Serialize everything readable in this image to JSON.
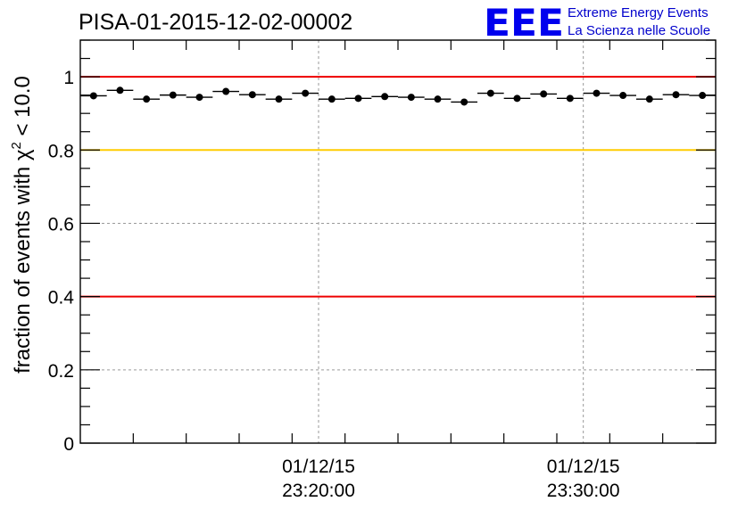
{
  "header": {
    "title": "PISA-01-2015-12-02-00002",
    "logo": {
      "letters": "EEE",
      "line1": "Extreme Energy Events",
      "line2": "La Scienza nelle Scuole",
      "color": "#0000ee"
    }
  },
  "chart_data": {
    "type": "scatter",
    "title": "PISA-01-2015-12-02-00002",
    "xlabel": "",
    "ylabel": "fraction of events with χ² < 10.0",
    "ylabel_parts": {
      "before": "fraction of events with ",
      "symbol": "χ",
      "sup": "2",
      "after": " < 10.0"
    },
    "ylim": [
      0,
      1.1
    ],
    "xlim": [
      "01/12/15 23:11:00",
      "01/12/15 23:35:00"
    ],
    "y_ticks": [
      {
        "value": 0,
        "label": "0"
      },
      {
        "value": 0.2,
        "label": "0.2"
      },
      {
        "value": 0.4,
        "label": "0.4"
      },
      {
        "value": 0.6,
        "label": "0.6"
      },
      {
        "value": 0.8,
        "label": "0.8"
      },
      {
        "value": 1,
        "label": "1"
      }
    ],
    "x_ticks": [
      {
        "value": "01/12/15 23:20:00",
        "date": "01/12/15",
        "time": "23:20:00"
      },
      {
        "value": "01/12/15 23:30:00",
        "date": "01/12/15",
        "time": "23:30:00"
      }
    ],
    "grid": true,
    "reference_lines": [
      {
        "y": 1.0,
        "color": "#ee0000"
      },
      {
        "y": 0.8,
        "color": "#ffcc00"
      },
      {
        "y": 0.4,
        "color": "#ee0000"
      }
    ],
    "series": [
      {
        "marker_color": "#000000",
        "bin_width_minutes": 1,
        "x": [
          "23:11:00",
          "23:12:00",
          "23:13:00",
          "23:14:00",
          "23:15:00",
          "23:16:00",
          "23:17:00",
          "23:18:00",
          "23:19:00",
          "23:20:00",
          "23:21:00",
          "23:22:00",
          "23:23:00",
          "23:24:00",
          "23:25:00",
          "23:26:00",
          "23:27:00",
          "23:28:00",
          "23:29:00",
          "23:30:00",
          "23:31:00",
          "23:32:00",
          "23:33:00",
          "23:34:00"
        ],
        "y": [
          0.948,
          0.963,
          0.939,
          0.95,
          0.944,
          0.96,
          0.951,
          0.939,
          0.955,
          0.939,
          0.941,
          0.946,
          0.944,
          0.939,
          0.931,
          0.955,
          0.941,
          0.953,
          0.941,
          0.955,
          0.949,
          0.939,
          0.951,
          0.949
        ]
      }
    ]
  }
}
